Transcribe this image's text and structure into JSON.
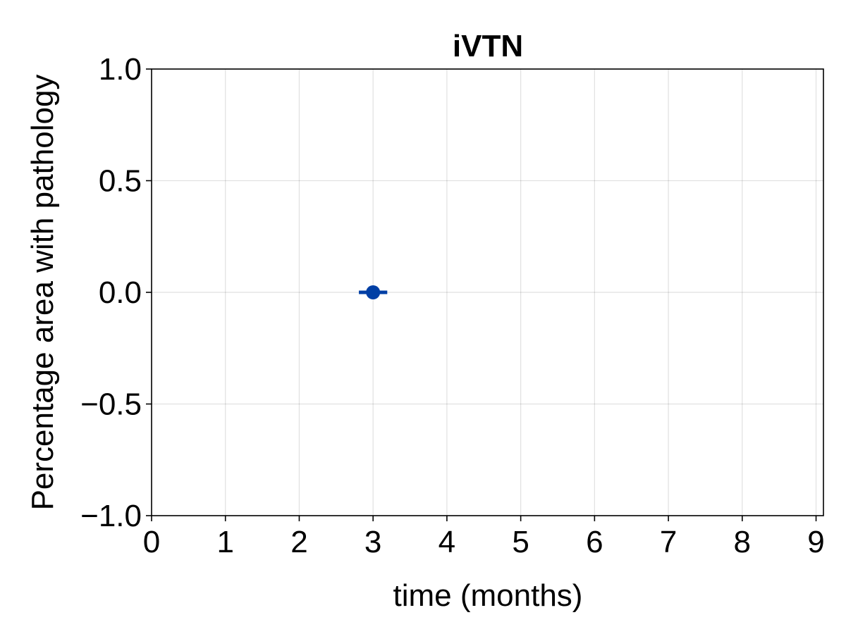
{
  "chart_data": {
    "type": "scatter",
    "title": "iVTN",
    "xlabel": "time (months)",
    "ylabel": "Percentage area with pathology",
    "xlim": [
      0,
      9.1
    ],
    "ylim": [
      -1.0,
      1.0
    ],
    "xticks": [
      0,
      1,
      2,
      3,
      4,
      5,
      6,
      7,
      8,
      9
    ],
    "xtick_labels": [
      "0",
      "1",
      "2",
      "3",
      "4",
      "5",
      "6",
      "7",
      "8",
      "9"
    ],
    "yticks": [
      -1.0,
      -0.5,
      0.0,
      0.5,
      1.0
    ],
    "ytick_labels": [
      "−1.0",
      "−0.5",
      "0.0",
      "0.5",
      "1.0"
    ],
    "grid": true,
    "series": [
      {
        "points": [
          {
            "x": 3,
            "y": 0.0,
            "error_low": 0.0,
            "error_high": 0.0
          }
        ],
        "color": "#003FA5"
      }
    ]
  }
}
